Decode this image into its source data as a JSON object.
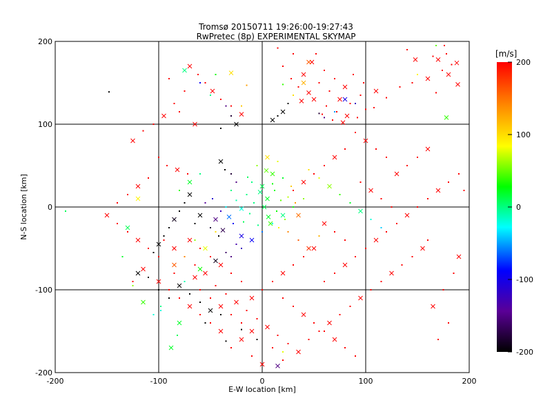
{
  "chart_data": {
    "type": "scatter",
    "title": "Tromsø 20150711 19:26:00-19:27:43",
    "subtitle": "RwPretec (8p) EXPERIMENTAL SKYMAP",
    "xlabel": "E-W location [km]",
    "ylabel": "N-S location [km]",
    "xlim": [
      -200,
      200
    ],
    "ylim": [
      -200,
      200
    ],
    "xticks": [
      "-200",
      "-100",
      "0",
      "100",
      "200"
    ],
    "yticks": [
      "-200",
      "-100",
      "0",
      "100",
      "200"
    ],
    "grid": true,
    "grid_values": [
      -100,
      0,
      100
    ],
    "colorbar": {
      "label": "[m/s]",
      "range": [
        -200,
        200
      ],
      "ticks": [
        "200",
        "100",
        "0",
        "-100",
        "-200"
      ],
      "colormap": [
        "#000000",
        "#5a0096",
        "#0000ff",
        "#00ffff",
        "#00ff00",
        "#ffff00",
        "#ff8000",
        "#ff0000"
      ]
    },
    "markers": {
      "small": "dot",
      "large": "x"
    },
    "points": [
      [
        170,
        178,
        200
      ],
      [
        178,
        185,
        200
      ],
      [
        -148,
        139,
        -200
      ],
      [
        148,
        178,
        200
      ],
      [
        183,
        172,
        200
      ],
      [
        133,
        145,
        200
      ],
      [
        160,
        155,
        200
      ],
      [
        145,
        150,
        200
      ],
      [
        174,
        165,
        200
      ],
      [
        189,
        148,
        200
      ],
      [
        165,
        182,
        200
      ],
      [
        140,
        190,
        200
      ],
      [
        188,
        174,
        200
      ],
      [
        176,
        195,
        200
      ],
      [
        168,
        138,
        200
      ],
      [
        180,
        160,
        200
      ],
      [
        15,
        192,
        200
      ],
      [
        30,
        185,
        200
      ],
      [
        48,
        175,
        200
      ],
      [
        60,
        165,
        200
      ],
      [
        70,
        155,
        200
      ],
      [
        80,
        145,
        200
      ],
      [
        95,
        135,
        200
      ],
      [
        108,
        120,
        200
      ],
      [
        40,
        160,
        200
      ],
      [
        55,
        150,
        200
      ],
      [
        65,
        140,
        200
      ],
      [
        75,
        130,
        200
      ],
      [
        85,
        125,
        200
      ],
      [
        100,
        118,
        200
      ],
      [
        50,
        130,
        200
      ],
      [
        62,
        122,
        200
      ],
      [
        72,
        115,
        200
      ],
      [
        82,
        110,
        200
      ],
      [
        92,
        108,
        200
      ],
      [
        35,
        145,
        200
      ],
      [
        45,
        138,
        200
      ],
      [
        58,
        112,
        200
      ],
      [
        68,
        105,
        200
      ],
      [
        78,
        102,
        200
      ],
      [
        20,
        170,
        200
      ],
      [
        28,
        155,
        200
      ],
      [
        38,
        128,
        200
      ],
      [
        88,
        160,
        200
      ],
      [
        98,
        150,
        200
      ],
      [
        110,
        140,
        200
      ],
      [
        120,
        132,
        200
      ],
      [
        52,
        185,
        200
      ],
      [
        -70,
        170,
        200
      ],
      [
        -62,
        160,
        200
      ],
      [
        -55,
        150,
        200
      ],
      [
        -48,
        140,
        200
      ],
      [
        -40,
        130,
        200
      ],
      [
        -30,
        122,
        200
      ],
      [
        -20,
        112,
        200
      ],
      [
        -75,
        140,
        200
      ],
      [
        -85,
        125,
        200
      ],
      [
        -95,
        110,
        200
      ],
      [
        -105,
        100,
        200
      ],
      [
        -115,
        92,
        200
      ],
      [
        -125,
        80,
        200
      ],
      [
        -90,
        155,
        200
      ],
      [
        -80,
        115,
        200
      ],
      [
        -65,
        100,
        200
      ],
      [
        -100,
        60,
        200
      ],
      [
        -92,
        50,
        200
      ],
      [
        -82,
        45,
        200
      ],
      [
        -72,
        40,
        200
      ],
      [
        -110,
        35,
        200
      ],
      [
        -120,
        25,
        200
      ],
      [
        -130,
        15,
        200
      ],
      [
        -140,
        5,
        200
      ],
      [
        -150,
        -10,
        200
      ],
      [
        -140,
        -20,
        200
      ],
      [
        -130,
        -30,
        200
      ],
      [
        -120,
        -40,
        200
      ],
      [
        -110,
        -50,
        200
      ],
      [
        -100,
        -60,
        200
      ],
      [
        -115,
        -75,
        200
      ],
      [
        -125,
        -90,
        200
      ],
      [
        -95,
        -40,
        200
      ],
      [
        -85,
        -50,
        200
      ],
      [
        -75,
        -60,
        200
      ],
      [
        -65,
        -70,
        200
      ],
      [
        -55,
        -80,
        200
      ],
      [
        -60,
        -100,
        200
      ],
      [
        -50,
        -110,
        200
      ],
      [
        -40,
        -120,
        200
      ],
      [
        -30,
        -130,
        200
      ],
      [
        -20,
        -140,
        200
      ],
      [
        -10,
        -150,
        200
      ],
      [
        -45,
        -95,
        200
      ],
      [
        -35,
        -105,
        200
      ],
      [
        -25,
        -115,
        200
      ],
      [
        -15,
        -125,
        200
      ],
      [
        -5,
        -135,
        200
      ],
      [
        5,
        -145,
        200
      ],
      [
        15,
        -155,
        200
      ],
      [
        25,
        -165,
        200
      ],
      [
        35,
        -175,
        200
      ],
      [
        45,
        -160,
        200
      ],
      [
        55,
        -150,
        200
      ],
      [
        65,
        -140,
        200
      ],
      [
        75,
        -130,
        200
      ],
      [
        85,
        -120,
        200
      ],
      [
        95,
        -110,
        200
      ],
      [
        105,
        -100,
        200
      ],
      [
        115,
        -90,
        200
      ],
      [
        125,
        -80,
        200
      ],
      [
        135,
        -70,
        200
      ],
      [
        145,
        -60,
        200
      ],
      [
        155,
        -50,
        200
      ],
      [
        60,
        -90,
        200
      ],
      [
        70,
        -80,
        200
      ],
      [
        80,
        -70,
        200
      ],
      [
        90,
        -60,
        200
      ],
      [
        100,
        -50,
        200
      ],
      [
        110,
        -40,
        200
      ],
      [
        120,
        -30,
        200
      ],
      [
        130,
        -20,
        200
      ],
      [
        140,
        -10,
        200
      ],
      [
        150,
        0,
        200
      ],
      [
        160,
        10,
        200
      ],
      [
        170,
        20,
        200
      ],
      [
        180,
        30,
        200
      ],
      [
        190,
        40,
        200
      ],
      [
        130,
        40,
        200
      ],
      [
        140,
        50,
        200
      ],
      [
        150,
        60,
        200
      ],
      [
        160,
        70,
        200
      ],
      [
        120,
        60,
        200
      ],
      [
        110,
        70,
        200
      ],
      [
        100,
        80,
        200
      ],
      [
        90,
        90,
        200
      ],
      [
        80,
        70,
        200
      ],
      [
        70,
        60,
        200
      ],
      [
        60,
        50,
        200
      ],
      [
        50,
        40,
        200
      ],
      [
        40,
        30,
        200
      ],
      [
        30,
        20,
        200
      ],
      [
        95,
        30,
        200
      ],
      [
        105,
        20,
        200
      ],
      [
        115,
        10,
        200
      ],
      [
        125,
        0,
        200
      ],
      [
        60,
        -20,
        200
      ],
      [
        70,
        -30,
        200
      ],
      [
        80,
        -40,
        200
      ],
      [
        50,
        -50,
        200
      ],
      [
        40,
        -60,
        200
      ],
      [
        30,
        -70,
        200
      ],
      [
        20,
        -80,
        200
      ],
      [
        10,
        -90,
        200
      ],
      [
        0,
        -100,
        200
      ],
      [
        -10,
        -110,
        200
      ],
      [
        -20,
        -90,
        200
      ],
      [
        -30,
        -80,
        200
      ],
      [
        -40,
        -70,
        200
      ],
      [
        -50,
        -60,
        200
      ],
      [
        -60,
        -50,
        200
      ],
      [
        -70,
        -40,
        200
      ],
      [
        20,
        -110,
        200
      ],
      [
        30,
        -120,
        200
      ],
      [
        40,
        -130,
        200
      ],
      [
        50,
        -140,
        200
      ],
      [
        60,
        -150,
        200
      ],
      [
        70,
        -160,
        200
      ],
      [
        80,
        -170,
        200
      ],
      [
        90,
        -180,
        200
      ],
      [
        -20,
        -160,
        200
      ],
      [
        -30,
        -170,
        200
      ],
      [
        -10,
        -180,
        200
      ],
      [
        0,
        -190,
        200
      ],
      [
        10,
        -170,
        200
      ],
      [
        20,
        -185,
        200
      ],
      [
        -40,
        -150,
        200
      ],
      [
        -50,
        -140,
        200
      ],
      [
        -60,
        -130,
        200
      ],
      [
        -70,
        -120,
        200
      ],
      [
        -80,
        -110,
        200
      ],
      [
        -90,
        -100,
        200
      ],
      [
        -100,
        -90,
        200
      ],
      [
        -85,
        -80,
        200
      ],
      [
        -75,
        -90,
        200
      ],
      [
        -65,
        -85,
        200
      ],
      [
        175,
        -100,
        200
      ],
      [
        185,
        -80,
        200
      ],
      [
        165,
        -120,
        200
      ],
      [
        180,
        -140,
        200
      ],
      [
        170,
        -160,
        200
      ],
      [
        190,
        -60,
        200
      ],
      [
        160,
        -40,
        200
      ],
      [
        195,
        20,
        200
      ],
      [
        5,
        60,
        100
      ],
      [
        15,
        55,
        80
      ],
      [
        -5,
        50,
        60
      ],
      [
        10,
        40,
        40
      ],
      [
        20,
        35,
        20
      ],
      [
        -10,
        30,
        0
      ],
      [
        0,
        25,
        10
      ],
      [
        12,
        20,
        30
      ],
      [
        -15,
        15,
        0
      ],
      [
        5,
        10,
        20
      ],
      [
        18,
        8,
        50
      ],
      [
        -8,
        5,
        0
      ],
      [
        2,
        0,
        10
      ],
      [
        14,
        -5,
        30
      ],
      [
        -12,
        -8,
        0
      ],
      [
        6,
        -12,
        20
      ],
      [
        22,
        -15,
        60
      ],
      [
        -18,
        -18,
        10
      ],
      [
        8,
        -20,
        40
      ],
      [
        -4,
        -22,
        0
      ],
      [
        16,
        -25,
        90
      ],
      [
        -20,
        -2,
        -20
      ],
      [
        -25,
        8,
        -10
      ],
      [
        25,
        12,
        70
      ],
      [
        -2,
        18,
        0
      ],
      [
        10,
        28,
        30
      ],
      [
        -14,
        36,
        10
      ],
      [
        4,
        44,
        50
      ],
      [
        28,
        25,
        110
      ],
      [
        32,
        5,
        130
      ],
      [
        35,
        -10,
        150
      ],
      [
        -30,
        20,
        0
      ],
      [
        -35,
        0,
        -30
      ],
      [
        -32,
        -12,
        -60
      ],
      [
        -28,
        -20,
        -90
      ],
      [
        -40,
        -5,
        -120
      ],
      [
        -45,
        -15,
        -150
      ],
      [
        -50,
        -25,
        -180
      ],
      [
        -42,
        -35,
        -200
      ],
      [
        -38,
        -28,
        -170
      ],
      [
        -55,
        5,
        -140
      ],
      [
        -48,
        10,
        -110
      ],
      [
        -60,
        -10,
        -200
      ],
      [
        -65,
        -20,
        -200
      ],
      [
        -36,
        45,
        -200
      ],
      [
        -40,
        55,
        -200
      ],
      [
        -30,
        40,
        -180
      ],
      [
        -25,
        30,
        -150
      ],
      [
        -70,
        15,
        -200
      ],
      [
        -75,
        5,
        -200
      ],
      [
        -80,
        -5,
        -200
      ],
      [
        -85,
        -15,
        -190
      ],
      [
        -90,
        -25,
        -200
      ],
      [
        -95,
        -35,
        -200
      ],
      [
        -100,
        -45,
        -200
      ],
      [
        -105,
        -55,
        -200
      ],
      [
        -110,
        -85,
        -200
      ],
      [
        -120,
        -80,
        -200
      ],
      [
        -100,
        -100,
        -200
      ],
      [
        -90,
        -110,
        -200
      ],
      [
        -80,
        -95,
        -200
      ],
      [
        -70,
        -105,
        -200
      ],
      [
        -60,
        -115,
        -200
      ],
      [
        -50,
        -125,
        -200
      ],
      [
        -30,
        -60,
        -150
      ],
      [
        -20,
        -50,
        -120
      ],
      [
        -10,
        -40,
        -90
      ],
      [
        0,
        -30,
        -60
      ],
      [
        10,
        -20,
        -30
      ],
      [
        20,
        -10,
        0
      ],
      [
        30,
        0,
        30
      ],
      [
        40,
        10,
        60
      ],
      [
        -20,
        -35,
        -100
      ],
      [
        -25,
        -45,
        -130
      ],
      [
        -35,
        -55,
        -160
      ],
      [
        -45,
        -65,
        -190
      ],
      [
        25,
        -30,
        140
      ],
      [
        35,
        -40,
        160
      ],
      [
        45,
        -50,
        180
      ],
      [
        55,
        -35,
        120
      ],
      [
        -60,
        40,
        0
      ],
      [
        -70,
        30,
        20
      ],
      [
        -80,
        20,
        40
      ],
      [
        -65,
        -40,
        60
      ],
      [
        -55,
        -50,
        80
      ],
      [
        -45,
        -30,
        100
      ],
      [
        -75,
        -60,
        140
      ],
      [
        -85,
        -70,
        160
      ],
      [
        45,
        45,
        100
      ],
      [
        55,
        35,
        80
      ],
      [
        65,
        25,
        60
      ],
      [
        75,
        15,
        40
      ],
      [
        85,
        5,
        20
      ],
      [
        95,
        -5,
        0
      ],
      [
        105,
        -15,
        -20
      ],
      [
        115,
        -25,
        -40
      ],
      [
        -130,
        -25,
        10
      ],
      [
        -135,
        -60,
        20
      ],
      [
        -125,
        -95,
        60
      ],
      [
        -115,
        -115,
        40
      ],
      [
        -105,
        -130,
        -20
      ],
      [
        -98,
        -120,
        0
      ],
      [
        -80,
        -140,
        20
      ],
      [
        -82,
        -155,
        10
      ],
      [
        -190,
        -5,
        10
      ],
      [
        178,
        108,
        40
      ],
      [
        150,
        160,
        90
      ],
      [
        168,
        195,
        50
      ],
      [
        -120,
        10,
        90
      ],
      [
        -98,
        -125,
        -20
      ],
      [
        -75,
        -90,
        -10
      ],
      [
        -60,
        -75,
        30
      ],
      [
        -20,
        -148,
        -200
      ],
      [
        -5,
        -160,
        -200
      ],
      [
        15,
        -192,
        -150
      ],
      [
        20,
        -175,
        80
      ],
      [
        -35,
        -162,
        -200
      ],
      [
        -88,
        -170,
        20
      ],
      [
        -40,
        -130,
        -200
      ],
      [
        -55,
        -140,
        -200
      ],
      [
        20,
        115,
        -200
      ],
      [
        25,
        125,
        -200
      ],
      [
        15,
        110,
        -200
      ],
      [
        10,
        105,
        -200
      ],
      [
        -35,
        122,
        -150
      ],
      [
        -30,
        110,
        -180
      ],
      [
        -25,
        100,
        -200
      ],
      [
        -40,
        95,
        -200
      ],
      [
        90,
        125,
        -120
      ],
      [
        80,
        130,
        -100
      ],
      [
        -50,
        135,
        0
      ],
      [
        -60,
        150,
        -90
      ],
      [
        -75,
        165,
        0
      ],
      [
        60,
        108,
        -150
      ],
      [
        55,
        113,
        -180
      ],
      [
        45,
        175,
        160
      ],
      [
        20,
        148,
        40
      ],
      [
        30,
        135,
        100
      ],
      [
        40,
        150,
        120
      ],
      [
        -20,
        122,
        110
      ],
      [
        -45,
        160,
        30
      ],
      [
        -30,
        162,
        100
      ],
      [
        -15,
        147,
        130
      ],
      [
        70,
        115,
        -50
      ]
    ]
  }
}
